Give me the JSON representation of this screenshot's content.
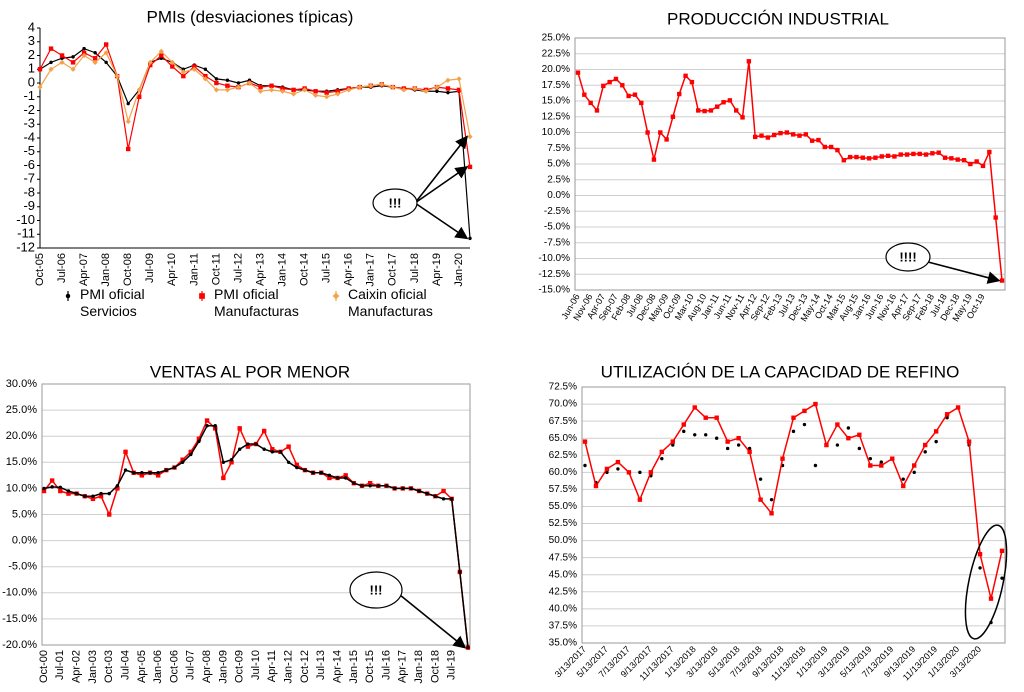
{
  "chart_data": [
    {
      "type": "line",
      "title": "PMIs (desviaciones típicas)",
      "grid": false,
      "legend": "bottom",
      "annotation": "!!!",
      "categories": [
        "Oct-05",
        null,
        "Jul-06",
        null,
        "Apr-07",
        null,
        "Jan-08",
        null,
        "Oct-08",
        null,
        "Jul-09",
        null,
        "Apr-10",
        null,
        "Jan-11",
        null,
        "Oct-11",
        null,
        "Jul-12",
        null,
        "Apr-13",
        null,
        "Jan-14",
        null,
        "Oct-14",
        null,
        "Jul-15",
        null,
        "Apr-16",
        null,
        "Jan-17",
        null,
        "Oct-17",
        null,
        "Jul-18",
        null,
        "Apr-19",
        null,
        "Jan-20",
        null
      ],
      "ylim": [
        -12,
        4
      ],
      "yticks": [
        4,
        3,
        2,
        1,
        0,
        -1,
        -2,
        -3,
        -4,
        -5,
        -6,
        -7,
        -8,
        -9,
        -10,
        -11,
        -12
      ],
      "series": [
        {
          "name": "PMI oficial Servicios",
          "color": "#000000",
          "marker": "circle",
          "values": [
            1.0,
            1.5,
            1.8,
            1.9,
            2.5,
            2.2,
            1.5,
            0.5,
            -1.5,
            -0.5,
            1.5,
            1.8,
            1.5,
            1.0,
            1.3,
            1.0,
            0.3,
            0.2,
            0.0,
            0.2,
            -0.2,
            -0.2,
            -0.3,
            -0.5,
            -0.5,
            -0.6,
            -0.6,
            -0.5,
            -0.4,
            -0.3,
            -0.3,
            -0.2,
            -0.3,
            -0.4,
            -0.5,
            -0.6,
            -0.6,
            -0.7,
            -0.6,
            -11.3
          ]
        },
        {
          "name": "PMI oficial Manufacturas",
          "color": "#ff0000",
          "marker": "square",
          "values": [
            1.0,
            2.5,
            2.0,
            1.5,
            2.2,
            1.8,
            2.8,
            0.5,
            -4.8,
            -1.0,
            1.3,
            2.0,
            1.2,
            0.5,
            1.2,
            0.5,
            0.0,
            -0.2,
            -0.3,
            0.0,
            -0.3,
            -0.2,
            -0.4,
            -0.5,
            -0.4,
            -0.6,
            -0.7,
            -0.6,
            -0.4,
            -0.3,
            -0.2,
            -0.1,
            -0.3,
            -0.4,
            -0.4,
            -0.5,
            -0.3,
            -0.4,
            -0.5,
            -6.1
          ]
        },
        {
          "name": "Caixin oficial Manufacturas",
          "color": "#f4a24a",
          "marker": "diamond",
          "values": [
            -0.3,
            1.0,
            1.5,
            1.0,
            2.0,
            1.5,
            2.2,
            0.5,
            -2.8,
            -0.5,
            1.5,
            2.3,
            1.5,
            0.8,
            1.0,
            0.3,
            -0.5,
            -0.5,
            -0.3,
            0.0,
            -0.6,
            -0.5,
            -0.6,
            -0.8,
            -0.5,
            -0.9,
            -1.0,
            -0.8,
            -0.5,
            -0.3,
            -0.2,
            -0.1,
            -0.3,
            -0.5,
            -0.4,
            -0.6,
            -0.3,
            0.2,
            0.3,
            -3.9
          ]
        }
      ]
    },
    {
      "type": "line",
      "title": "PRODUCCIÓN INDUSTRIAL",
      "grid": true,
      "annotation": "!!!!",
      "categories": [
        "Jun-06",
        null,
        "Nov-06",
        null,
        "Apr-07",
        null,
        "Sep-07",
        null,
        "Feb-08",
        null,
        "Jul-08",
        null,
        "Dec-08",
        null,
        "May-09",
        null,
        "Oct-09",
        null,
        "Mar-10",
        null,
        "Aug-10",
        null,
        "Jan-11",
        null,
        "Jun-11",
        null,
        "Nov-11",
        null,
        "Apr-12",
        null,
        "Sep-12",
        null,
        "Feb-13",
        null,
        "Jul-13",
        null,
        "Dec-13",
        null,
        "May-14",
        null,
        "Oct-14",
        null,
        "Mar-15",
        null,
        "Aug-15",
        null,
        "Jan-16",
        null,
        "Jun-16",
        null,
        "Nov-16",
        null,
        "Apr-17",
        null,
        "Sep-17",
        null,
        "Feb-18",
        null,
        "Jul-18",
        null,
        "Dec-18",
        null,
        "May-19",
        null,
        "Oct-19",
        null,
        null,
        null
      ],
      "ylim": [
        -15,
        25
      ],
      "yticks": [
        {
          "value": 25,
          "label": "25.0%"
        },
        {
          "value": 22.5,
          "label": "22.5%"
        },
        {
          "value": 20,
          "label": "20.0%"
        },
        {
          "value": 17.5,
          "label": "17.5%"
        },
        {
          "value": 15,
          "label": "15.0%"
        },
        {
          "value": 12.5,
          "label": "12.5%"
        },
        {
          "value": 10,
          "label": "10.0%"
        },
        {
          "value": 7.5,
          "label": "7.5%"
        },
        {
          "value": 5,
          "label": "5.0%"
        },
        {
          "value": 2.5,
          "label": "2.5%"
        },
        {
          "value": 0,
          "label": "0.0%"
        },
        {
          "value": -2.5,
          "label": "-2.5%"
        },
        {
          "value": -5,
          "label": "-5.0%"
        },
        {
          "value": -7.5,
          "label": "-7.5%"
        },
        {
          "value": -10,
          "label": "-10.0%"
        },
        {
          "value": -12.5,
          "label": "-12.5%"
        },
        {
          "value": -15,
          "label": "-15.0%"
        }
      ],
      "series": [
        {
          "color": "#ff0000",
          "marker": "square",
          "values": [
            19.5,
            16.0,
            14.7,
            13.5,
            17.4,
            18.0,
            18.5,
            17.5,
            15.8,
            16.0,
            14.7,
            10.0,
            5.7,
            10.0,
            8.9,
            12.5,
            16.1,
            19.0,
            18.0,
            13.5,
            13.4,
            13.5,
            14.1,
            14.8,
            15.1,
            13.5,
            12.4,
            21.3,
            9.3,
            9.5,
            9.2,
            9.6,
            9.9,
            10.0,
            9.7,
            9.5,
            9.7,
            8.7,
            8.8,
            7.7,
            7.7,
            7.2,
            5.6,
            6.1,
            6.1,
            6.0,
            5.9,
            6.0,
            6.2,
            6.3,
            6.2,
            6.5,
            6.5,
            6.6,
            6.6,
            6.5,
            6.7,
            6.8,
            6.0,
            5.9,
            5.7,
            5.6,
            5.0,
            5.4,
            4.7,
            6.9,
            -3.5,
            -13.5
          ]
        }
      ]
    },
    {
      "type": "line",
      "title": "VENTAS AL POR MENOR",
      "grid": true,
      "annotation": "!!!",
      "categories": [
        "Oct-00",
        null,
        "Jul-01",
        null,
        "Apr-02",
        null,
        "Jan-03",
        null,
        "Oct-03",
        null,
        "Jul-04",
        null,
        "Apr-05",
        null,
        "Jan-06",
        null,
        "Oct-06",
        null,
        "Jul-07",
        null,
        "Apr-08",
        null,
        "Jan-09",
        null,
        "Oct-09",
        null,
        "Jul-10",
        null,
        "Apr-11",
        null,
        "Jan-12",
        null,
        "Oct-12",
        null,
        "Jul-13",
        null,
        "Apr-14",
        null,
        "Jan-15",
        null,
        "Oct-15",
        null,
        "Jul-16",
        null,
        "Apr-17",
        null,
        "Jan-18",
        null,
        "Oct-18",
        null,
        "Jul-19",
        null,
        null
      ],
      "ylim": [
        -20,
        30
      ],
      "yticks": [
        {
          "value": 30,
          "label": "30.0%"
        },
        {
          "value": 25,
          "label": "25.0%"
        },
        {
          "value": 20,
          "label": "20.0%"
        },
        {
          "value": 15,
          "label": "15.0%"
        },
        {
          "value": 10,
          "label": "10.0%"
        },
        {
          "value": 5,
          "label": "5.0%"
        },
        {
          "value": 0,
          "label": "0.0%"
        },
        {
          "value": -5,
          "label": "-5.0%"
        },
        {
          "value": -10,
          "label": "-10.0%"
        },
        {
          "value": -15,
          "label": "-15.0%"
        },
        {
          "value": -20,
          "label": "-20.0%"
        }
      ],
      "series": [
        {
          "color": "#ff0000",
          "marker": "square",
          "values": [
            9.5,
            11.5,
            9.5,
            9.0,
            9.0,
            8.5,
            8.0,
            8.5,
            5.0,
            10.0,
            17.0,
            13.0,
            12.5,
            13.0,
            12.5,
            13.5,
            14.0,
            15.5,
            17.0,
            19.5,
            23.0,
            21.5,
            12.0,
            15.0,
            21.5,
            18.0,
            18.5,
            21.0,
            17.5,
            17.0,
            18.0,
            14.5,
            13.5,
            13.0,
            13.0,
            12.0,
            12.0,
            12.5,
            11.0,
            10.5,
            11.0,
            10.5,
            10.5,
            10.0,
            10.0,
            10.0,
            9.5,
            9.0,
            8.5,
            9.5,
            8.0,
            -6.0,
            -20.5
          ]
        },
        {
          "color": "#000000",
          "marker": "circle",
          "values": [
            10.0,
            10.3,
            10.2,
            9.5,
            9.0,
            8.5,
            8.5,
            9.0,
            9.0,
            10.5,
            13.5,
            13.0,
            13.0,
            13.0,
            13.0,
            13.5,
            14.0,
            15.0,
            16.5,
            19.0,
            22.0,
            22.0,
            15.0,
            15.5,
            17.5,
            18.5,
            18.5,
            17.5,
            17.0,
            17.0,
            15.0,
            14.0,
            13.5,
            13.0,
            13.0,
            12.5,
            12.0,
            12.0,
            11.0,
            10.5,
            10.5,
            10.5,
            10.5,
            10.0,
            10.0,
            10.0,
            9.5,
            9.0,
            8.5,
            8.0,
            8.0,
            -6.0,
            -20.5
          ]
        }
      ]
    },
    {
      "type": "line",
      "title": "UTILIZACIÓN DE LA CAPACIDAD DE REFINO",
      "grid": true,
      "categories": [
        "3/13/2017",
        null,
        "5/13/2017",
        null,
        "7/13/2017",
        null,
        "9/13/2017",
        null,
        "11/13/2017",
        null,
        "1/13/2018",
        null,
        "3/13/2018",
        null,
        "5/13/2018",
        null,
        "7/13/2018",
        null,
        "9/13/2018",
        null,
        "11/13/2018",
        null,
        "1/13/2019",
        null,
        "3/13/2019",
        null,
        "5/13/2019",
        null,
        "7/13/2019",
        null,
        "9/13/2019",
        null,
        "11/13/2019",
        null,
        "1/13/2020",
        null,
        "3/13/2020",
        null,
        null
      ],
      "ylim": [
        35,
        72.5
      ],
      "yticks": [
        {
          "value": 72.5,
          "label": "72.5%"
        },
        {
          "value": 70,
          "label": "70.0%"
        },
        {
          "value": 67.5,
          "label": "67.5%"
        },
        {
          "value": 65,
          "label": "65.0%"
        },
        {
          "value": 62.5,
          "label": "62.5%"
        },
        {
          "value": 60,
          "label": "60.0%"
        },
        {
          "value": 57.5,
          "label": "57.5%"
        },
        {
          "value": 55,
          "label": "55.0%"
        },
        {
          "value": 52.5,
          "label": "52.5%"
        },
        {
          "value": 50,
          "label": "50.0%"
        },
        {
          "value": 47.5,
          "label": "47.5%"
        },
        {
          "value": 45,
          "label": "45.0%"
        },
        {
          "value": 42.5,
          "label": "42.5%"
        },
        {
          "value": 40,
          "label": "40.0%"
        },
        {
          "value": 37.5,
          "label": "37.5%"
        },
        {
          "value": 35,
          "label": "35.0%"
        }
      ],
      "series": [
        {
          "color": "#000000",
          "marker": "circle",
          "line": false,
          "values": [
            61.0,
            58.5,
            60.0,
            60.5,
            60.0,
            60.0,
            59.5,
            62.0,
            64.0,
            66.0,
            65.5,
            65.5,
            65.0,
            63.5,
            64.0,
            63.5,
            59.0,
            56.0,
            61.0,
            66.0,
            67.0,
            61.0,
            64.0,
            64.0,
            66.5,
            63.5,
            62.0,
            61.5,
            62.0,
            59.0,
            60.0,
            63.0,
            64.5,
            68.0,
            69.5,
            64.0,
            46.0,
            38.0,
            44.5
          ]
        },
        {
          "color": "#ff0000",
          "marker": "square",
          "values": [
            64.5,
            58.0,
            60.5,
            61.5,
            60.0,
            56.0,
            60.0,
            63.0,
            64.5,
            67.0,
            69.5,
            68.0,
            68.0,
            64.5,
            65.0,
            63.0,
            56.0,
            54.0,
            62.0,
            68.0,
            69.0,
            70.0,
            64.0,
            67.0,
            65.0,
            65.5,
            61.0,
            61.0,
            62.0,
            58.0,
            61.0,
            64.0,
            66.0,
            68.5,
            69.5,
            64.5,
            48.0,
            41.5,
            48.5
          ]
        }
      ]
    }
  ]
}
